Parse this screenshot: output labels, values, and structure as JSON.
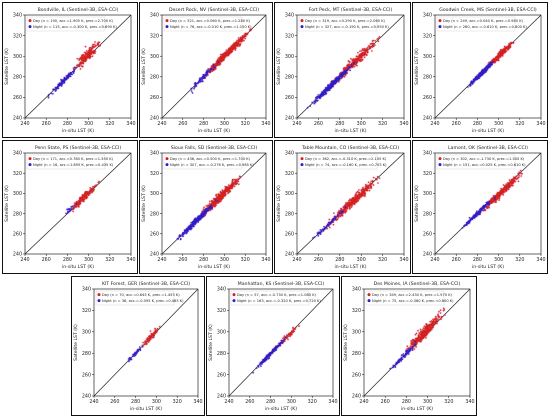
{
  "colors": {
    "day": "#d4221c",
    "night": "#2c1fc8",
    "pink": "#ea9ad6",
    "line": "#222222"
  },
  "axis": {
    "ticks": [
      240,
      260,
      280,
      300,
      320,
      340
    ],
    "xlabel": "in-situ LST (K)",
    "ylabel": "Satellite LST (K)"
  },
  "chart_data": [
    {
      "type": "scatter",
      "title": "Bondville, IL (Sentinel-3B, ESA-CCI)",
      "legend": [
        "Day (n = 190, acc.=1.905 K, prec.=2.700 K)",
        "Night (n = 115, acc.=-0.300 K, prec.=0.690 K)"
      ],
      "xlim": [
        240,
        340
      ],
      "ylim": [
        240,
        340
      ],
      "series": [
        {
          "name": "Day",
          "n": 190,
          "acc": 1.905,
          "range": [
            282,
            314
          ],
          "spread": 2.7
        },
        {
          "name": "Night",
          "n": 115,
          "acc": -0.3,
          "range": [
            260,
            292
          ],
          "spread": 1.2
        }
      ]
    },
    {
      "type": "scatter",
      "title": "Desert Rock, NV (Sentinel-3B, ESA-CCI)",
      "legend": [
        "Day (n = 521, acc.=0.060 K, prec.=1.280 K)",
        "Night (n = 76, acc.=-0.010 K, prec.=1.150 K)"
      ],
      "xlim": [
        240,
        340
      ],
      "ylim": [
        240,
        340
      ],
      "series": [
        {
          "name": "Day",
          "n": 521,
          "acc": 0.06,
          "range": [
            275,
            330
          ],
          "spread": 1.6
        },
        {
          "name": "Night",
          "n": 76,
          "acc": -0.01,
          "range": [
            262,
            296
          ],
          "spread": 1.3
        }
      ]
    },
    {
      "type": "scatter",
      "title": "Fort Peck, MT (Sentinel-3B, ESA-CCI)",
      "legend": [
        "Day (n = 319, acc.=0.290 K, prec.=2.060 K)",
        "Night (n = 327, acc.=-0.190 K, prec.=0.950 K)"
      ],
      "xlim": [
        240,
        340
      ],
      "ylim": [
        240,
        340
      ],
      "series": [
        {
          "name": "Day",
          "n": 319,
          "acc": 0.29,
          "range": [
            265,
            322
          ],
          "spread": 2.1
        },
        {
          "name": "Night",
          "n": 327,
          "acc": -0.19,
          "range": [
            248,
            296
          ],
          "spread": 1.3
        }
      ]
    },
    {
      "type": "scatter",
      "title": "Goodwin Creek, MS (Sentinel-3B, ESA-CCI)",
      "legend": [
        "Day (n = 249, acc.=0.040 K, prec.=0.980 K)",
        "Night (n = 260, acc.=-0.610 K, prec.=0.800 K)"
      ],
      "xlim": [
        240,
        340
      ],
      "ylim": [
        240,
        340
      ],
      "series": [
        {
          "name": "Day",
          "n": 249,
          "acc": 0.04,
          "range": [
            285,
            318
          ],
          "spread": 1.4
        },
        {
          "name": "Night",
          "n": 260,
          "acc": -0.61,
          "range": [
            268,
            300
          ],
          "spread": 1.1
        }
      ]
    },
    {
      "type": "scatter",
      "title": "Penn State, PS (Sentinel-3B, ESA-CCI)",
      "legend": [
        "Day (n = 171, acc.=0.780 K, prec.=1.350 K)",
        "Night (n = 16, acc.=1.895 K, prec.=0.435 K)"
      ],
      "xlim": [
        240,
        340
      ],
      "ylim": [
        240,
        340
      ],
      "series": [
        {
          "name": "Day",
          "n": 171,
          "acc": 0.78,
          "range": [
            278,
            312
          ],
          "spread": 1.8
        },
        {
          "name": "Night",
          "n": 16,
          "acc": 1.895,
          "range": [
            272,
            292
          ],
          "spread": 1.0
        }
      ]
    },
    {
      "type": "scatter",
      "title": "Sioux Falls, SD (Sentinel-3B, ESA-CCI)",
      "legend": [
        "Day (n = 436, acc.=0.500 K, prec.=1.700 K)",
        "Night (n = 307, acc.=-0.276 K, prec.=0.985 K)"
      ],
      "xlim": [
        240,
        340
      ],
      "ylim": [
        240,
        340
      ],
      "series": [
        {
          "name": "Day",
          "n": 436,
          "acc": 0.5,
          "range": [
            268,
            322
          ],
          "spread": 1.9
        },
        {
          "name": "Night",
          "n": 307,
          "acc": -0.276,
          "range": [
            250,
            296
          ],
          "spread": 1.3
        }
      ]
    },
    {
      "type": "scatter",
      "title": "Table Mountain, CO (Sentinel-3B, ESA-CCI)",
      "legend": [
        "Day (n = 362, acc.=-0.310 K, prec.=2.105 K)",
        "Night (n = 74, acc.=-0.160 K, prec.=0.705 K)"
      ],
      "xlim": [
        240,
        340
      ],
      "ylim": [
        240,
        340
      ],
      "series": [
        {
          "name": "Day",
          "n": 362,
          "acc": -0.31,
          "range": [
            262,
            324
          ],
          "spread": 2.2
        },
        {
          "name": "Night",
          "n": 74,
          "acc": -0.16,
          "range": [
            252,
            290
          ],
          "spread": 1.1
        }
      ]
    },
    {
      "type": "scatter",
      "title": "Lamont, OK (Sentinel-3B, ESA-CCI)",
      "legend": [
        "Day (n = 302, acc.=-1.730 K, prec.=1.500 K)",
        "Night (n = 151, acc.=0.025 K, prec.=0.610 K)"
      ],
      "xlim": [
        240,
        340
      ],
      "ylim": [
        240,
        340
      ],
      "series": [
        {
          "name": "Day",
          "n": 302,
          "acc": -1.73,
          "range": [
            278,
            328
          ],
          "spread": 1.9
        },
        {
          "name": "Night",
          "n": 151,
          "acc": 0.025,
          "range": [
            262,
            300
          ],
          "spread": 1.0
        }
      ]
    },
    {
      "type": "scatter",
      "title": "KIT Forest, GER (Sentinel-3B, ESA-CCI)",
      "legend": [
        "Day (n = 70, acc.=0.645 K, prec.=1.455 K)",
        "Night (n = 36, acc.=-0.095 K, prec.=0.485 K)"
      ],
      "xlim": [
        240,
        340
      ],
      "ylim": [
        240,
        340
      ],
      "series": [
        {
          "name": "Day",
          "n": 70,
          "acc": 0.645,
          "range": [
            284,
            306
          ],
          "spread": 1.6
        },
        {
          "name": "Night",
          "n": 36,
          "acc": -0.095,
          "range": [
            268,
            290
          ],
          "spread": 0.8
        }
      ]
    },
    {
      "type": "scatter",
      "title": "Manhattan, KS (Sentinel-3B, ESA-CCI)",
      "legend": [
        "Day (n = 57, acc.=-0.730 K, prec.=1.080 K)",
        "Night (n = 163, acc.=-0.320 K, prec.=0.720 K)"
      ],
      "xlim": [
        240,
        340
      ],
      "ylim": [
        240,
        340
      ],
      "series": [
        {
          "name": "Day",
          "n": 57,
          "acc": -0.73,
          "range": [
            284,
            310
          ],
          "spread": 1.4
        },
        {
          "name": "Night",
          "n": 163,
          "acc": -0.32,
          "range": [
            262,
            298
          ],
          "spread": 1.0
        }
      ]
    },
    {
      "type": "scatter",
      "title": "Des Moines, IA (Sentinel-3B, ESA-CCI)",
      "legend": [
        "Day (n = 349, acc.=2.430 K, prec.=1.970 K)",
        "Night (n = 75, acc.=-0.360 K, prec.=0.800 K)"
      ],
      "xlim": [
        240,
        340
      ],
      "ylim": [
        240,
        340
      ],
      "series": [
        {
          "name": "Day",
          "n": 349,
          "acc": 2.43,
          "range": [
            276,
            318
          ],
          "spread": 2.4
        },
        {
          "name": "Night",
          "n": 75,
          "acc": -0.36,
          "range": [
            262,
            292
          ],
          "spread": 1.1
        }
      ]
    }
  ]
}
